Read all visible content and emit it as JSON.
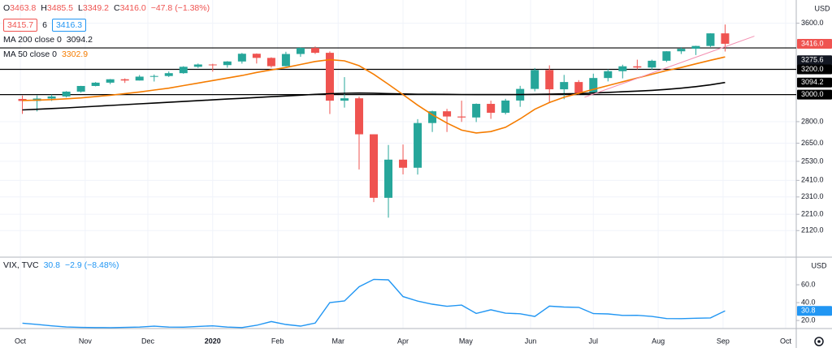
{
  "header": {
    "ohlc": [
      [
        "O",
        "3463.8"
      ],
      [
        "H",
        "3485.5"
      ],
      [
        "L",
        "3349.2"
      ],
      [
        "C",
        "3416.0"
      ]
    ],
    "change": "−47.8 (−1.38%)",
    "bid": "3415.7",
    "spread": "6",
    "ask": "3416.3"
  },
  "chart_data": [
    {
      "type": "candlestick",
      "currency": "USD",
      "log": true,
      "grid": true,
      "up_color": "#26a69a",
      "down_color": "#ef5350",
      "open": [
        2967,
        2952,
        2970,
        2986,
        3023,
        3067,
        3093,
        3120,
        3110,
        3141,
        3146,
        3169,
        3221,
        3240,
        3235,
        3265,
        3330,
        3295,
        3226,
        3328,
        3380,
        3338,
        2954,
        2972,
        2711,
        2305,
        2541,
        2489,
        2790,
        2875,
        2837,
        2830,
        2930,
        2864,
        2955,
        3044,
        3194,
        3041,
        3098,
        3009,
        3130,
        3185,
        3225,
        3215,
        3271,
        3351,
        3373,
        3397,
        3508
      ],
      "high": [
        2993,
        2994,
        3000,
        3027,
        3068,
        3098,
        3122,
        3127,
        3154,
        3158,
        3183,
        3226,
        3248,
        3246,
        3268,
        3337,
        3333,
        3300,
        3347,
        3386,
        3393,
        3350,
        3137,
        2985,
        2711,
        2638,
        2641,
        2818,
        2880,
        2893,
        2954,
        2933,
        2954,
        2968,
        3068,
        3211,
        3233,
        3155,
        3113,
        3165,
        3200,
        3238,
        3280,
        3280,
        3352,
        3387,
        3399,
        3509,
        3588
      ],
      "low": [
        2856,
        2874,
        2952,
        2978,
        3015,
        3064,
        3081,
        3091,
        3110,
        3102,
        3138,
        3164,
        3212,
        3181,
        3214,
        3247,
        3248,
        3214,
        3224,
        3304,
        3328,
        2855,
        2902,
        2478,
        2280,
        2191,
        2447,
        2446,
        2727,
        2727,
        2798,
        2797,
        2820,
        2852,
        2908,
        3025,
        2936,
        2965,
        2999,
        3002,
        3103,
        3127,
        3200,
        3198,
        3260,
        3328,
        3319,
        3388,
        3349
      ],
      "close": [
        2952,
        2970,
        2986,
        3023,
        3067,
        3093,
        3120,
        3110,
        3141,
        3146,
        3169,
        3221,
        3240,
        3235,
        3265,
        3330,
        3295,
        3226,
        3328,
        3380,
        3338,
        2954,
        2972,
        2711,
        2305,
        2541,
        2489,
        2790,
        2875,
        2837,
        2830,
        2930,
        2864,
        2955,
        3044,
        3194,
        3041,
        3098,
        3009,
        3130,
        3185,
        3225,
        3215,
        3271,
        3351,
        3373,
        3397,
        3508,
        3416
      ],
      "series": [
        {
          "name": "MA 200 close 0",
          "color": "#000000",
          "last_box": true,
          "values": [
            2885,
            2890,
            2895,
            2900,
            2906,
            2912,
            2918,
            2924,
            2930,
            2936,
            2942,
            2948,
            2954,
            2960,
            2966,
            2972,
            2978,
            2984,
            2990,
            2996,
            3002,
            3007,
            3010,
            3012,
            3011,
            3008,
            3005,
            3003,
            3003,
            3002,
            3001,
            3000,
            3000,
            3000,
            3000,
            3002,
            3004,
            3006,
            3008,
            3012,
            3017,
            3022,
            3027,
            3033,
            3040,
            3050,
            3062,
            3076,
            3094.2
          ]
        },
        {
          "name": "MA 50 close 0",
          "color": "#f57c00",
          "last_box": false,
          "values": [
            2955,
            2958,
            2962,
            2968,
            2975,
            2985,
            2995,
            3008,
            3020,
            3035,
            3050,
            3070,
            3090,
            3110,
            3130,
            3150,
            3175,
            3195,
            3215,
            3240,
            3265,
            3280,
            3270,
            3230,
            3160,
            3080,
            3000,
            2920,
            2850,
            2790,
            2740,
            2720,
            2730,
            2760,
            2820,
            2890,
            2940,
            2980,
            3010,
            3040,
            3070,
            3100,
            3130,
            3160,
            3190,
            3215,
            3245,
            3275,
            3302.9
          ]
        }
      ],
      "xlim": [
        -1.53,
        52.86
      ],
      "xticks": [
        {
          "value": -0.14,
          "label": "Oct"
        },
        {
          "value": 4.29,
          "label": "Nov"
        },
        {
          "value": 8.57,
          "label": "Dec"
        },
        {
          "value": 13.0,
          "label": "2020"
        },
        {
          "value": 17.43,
          "label": "Feb"
        },
        {
          "value": 21.57,
          "label": "Mar"
        },
        {
          "value": 26.0,
          "label": "Apr"
        },
        {
          "value": 30.29,
          "label": "May"
        },
        {
          "value": 34.71,
          "label": "Jun"
        },
        {
          "value": 39.0,
          "label": "Jul"
        },
        {
          "value": 43.43,
          "label": "Aug"
        },
        {
          "value": 47.86,
          "label": "Sep"
        },
        {
          "value": 52.14,
          "label": "Oct"
        }
      ],
      "ylim": [
        1985,
        3820
      ],
      "yticks": [
        {
          "value": 3600,
          "label": "3600.0"
        },
        {
          "value": 2800,
          "label": "2800.0"
        },
        {
          "value": 2650,
          "label": "2650.0"
        },
        {
          "value": 2530,
          "label": "2530.0"
        },
        {
          "value": 2410,
          "label": "2410.0"
        },
        {
          "value": 2310,
          "label": "2310.0"
        },
        {
          "value": 2210,
          "label": "2210.0"
        },
        {
          "value": 2120,
          "label": "2120.0"
        }
      ],
      "levels": [
        3380,
        3200,
        3000
      ],
      "price_labels": [
        {
          "value": 3416,
          "label": "3416.0",
          "color": "#ef5350"
        },
        {
          "value": 3275.6,
          "label": "3275.6",
          "color": "#131722"
        },
        {
          "value": 3200,
          "label": "3200.0",
          "color": "#000000"
        },
        {
          "value": 3000,
          "label": "3000.0",
          "color": "#000000"
        }
      ],
      "trendline": {
        "x": [
          38.4,
          50
        ],
        "values": [
          2980,
          3483
        ],
        "color": "#f48fb1"
      }
    },
    {
      "type": "line",
      "title": "VIX, TVC",
      "last": "30.8",
      "change": "−2.9 (−8.48%)",
      "currency": "USD",
      "color": "#2196f3",
      "values": [
        17,
        15.6,
        14,
        12.7,
        12.3,
        12.1,
        12,
        12.3,
        12.6,
        13.6,
        12.6,
        12.5,
        13.4,
        14,
        12.6,
        12.1,
        14.6,
        18.8,
        15.5,
        13.7,
        17.1,
        40.1,
        41.9,
        57.8,
        66,
        65.5,
        46.8,
        41.7,
        38.2,
        35.9,
        37.2,
        27.9,
        32,
        28.2,
        27.5,
        24.5,
        36.1,
        35.1,
        34.7,
        27.7,
        27.3,
        25.7,
        25.8,
        24.5,
        22.2,
        22.1,
        22.5,
        22.9,
        30.8
      ],
      "ylim": [
        11,
        90
      ],
      "yticks": [
        {
          "value": 60,
          "label": "60.0"
        },
        {
          "value": 40,
          "label": "40.0"
        },
        {
          "value": 20,
          "label": "20.0"
        }
      ],
      "price_labels": [
        {
          "value": 30.8,
          "label": "30.8",
          "color": "#2196f3"
        }
      ]
    }
  ]
}
